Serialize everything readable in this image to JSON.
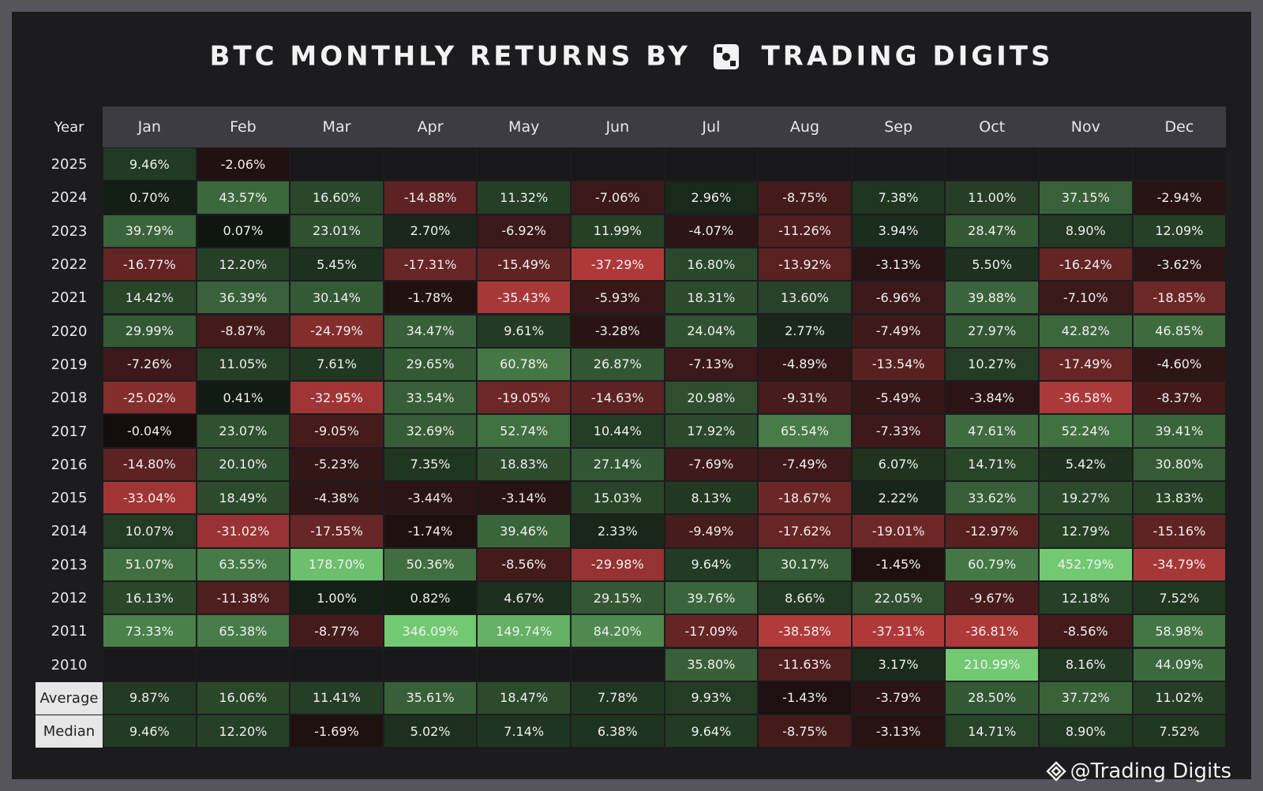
{
  "header": {
    "title": "BTC MONTHLY RETURNS BY",
    "brand": "TRADING DIGITS"
  },
  "table": {
    "columns": [
      "Year",
      "Jan",
      "Feb",
      "Mar",
      "Apr",
      "May",
      "Jun",
      "Jul",
      "Aug",
      "Sep",
      "Oct",
      "Nov",
      "Dec"
    ],
    "rows": [
      [
        "2025",
        "9.46%",
        "-2.06%",
        null,
        null,
        null,
        null,
        null,
        null,
        null,
        null,
        null,
        null
      ],
      [
        "2024",
        "0.70%",
        "43.57%",
        "16.60%",
        "-14.88%",
        "11.32%",
        "-7.06%",
        "2.96%",
        "-8.75%",
        "7.38%",
        "11.00%",
        "37.15%",
        "-2.94%"
      ],
      [
        "2023",
        "39.79%",
        "0.07%",
        "23.01%",
        "2.70%",
        "-6.92%",
        "11.99%",
        "-4.07%",
        "-11.26%",
        "3.94%",
        "28.47%",
        "8.90%",
        "12.09%"
      ],
      [
        "2022",
        "-16.77%",
        "12.20%",
        "5.45%",
        "-17.31%",
        "-15.49%",
        "-37.29%",
        "16.80%",
        "-13.92%",
        "-3.13%",
        "5.50%",
        "-16.24%",
        "-3.62%"
      ],
      [
        "2021",
        "14.42%",
        "36.39%",
        "30.14%",
        "-1.78%",
        "-35.43%",
        "-5.93%",
        "18.31%",
        "13.60%",
        "-6.96%",
        "39.88%",
        "-7.10%",
        "-18.85%"
      ],
      [
        "2020",
        "29.99%",
        "-8.87%",
        "-24.79%",
        "34.47%",
        "9.61%",
        "-3.28%",
        "24.04%",
        "2.77%",
        "-7.49%",
        "27.97%",
        "42.82%",
        "46.85%"
      ],
      [
        "2019",
        "-7.26%",
        "11.05%",
        "7.61%",
        "29.65%",
        "60.78%",
        "26.87%",
        "-7.13%",
        "-4.89%",
        "-13.54%",
        "10.27%",
        "-17.49%",
        "-4.60%"
      ],
      [
        "2018",
        "-25.02%",
        "0.41%",
        "-32.95%",
        "33.54%",
        "-19.05%",
        "-14.63%",
        "20.98%",
        "-9.31%",
        "-5.49%",
        "-3.84%",
        "-36.58%",
        "-8.37%"
      ],
      [
        "2017",
        "-0.04%",
        "23.07%",
        "-9.05%",
        "32.69%",
        "52.74%",
        "10.44%",
        "17.92%",
        "65.54%",
        "-7.33%",
        "47.61%",
        "52.24%",
        "39.41%"
      ],
      [
        "2016",
        "-14.80%",
        "20.10%",
        "-5.23%",
        "7.35%",
        "18.83%",
        "27.14%",
        "-7.69%",
        "-7.49%",
        "6.07%",
        "14.71%",
        "5.42%",
        "30.80%"
      ],
      [
        "2015",
        "-33.04%",
        "18.49%",
        "-4.38%",
        "-3.44%",
        "-3.14%",
        "15.03%",
        "8.13%",
        "-18.67%",
        "2.22%",
        "33.62%",
        "19.27%",
        "13.83%"
      ],
      [
        "2014",
        "10.07%",
        "-31.02%",
        "-17.55%",
        "-1.74%",
        "39.46%",
        "2.33%",
        "-9.49%",
        "-17.62%",
        "-19.01%",
        "-12.97%",
        "12.79%",
        "-15.16%"
      ],
      [
        "2013",
        "51.07%",
        "63.55%",
        "178.70%",
        "50.36%",
        "-8.56%",
        "-29.98%",
        "9.64%",
        "30.17%",
        "-1.45%",
        "60.79%",
        "452.79%",
        "-34.79%"
      ],
      [
        "2012",
        "16.13%",
        "-11.38%",
        "1.00%",
        "0.82%",
        "4.67%",
        "29.15%",
        "39.76%",
        "8.66%",
        "22.05%",
        "-9.67%",
        "12.18%",
        "7.52%"
      ],
      [
        "2011",
        "73.33%",
        "65.38%",
        "-8.77%",
        "346.09%",
        "149.74%",
        "84.20%",
        "-17.09%",
        "-38.58%",
        "-37.31%",
        "-36.81%",
        "-8.56%",
        "58.98%"
      ],
      [
        "2010",
        null,
        null,
        null,
        null,
        null,
        null,
        "35.80%",
        "-11.63%",
        "3.17%",
        "210.99%",
        "8.16%",
        "44.09%"
      ],
      [
        "Average",
        "9.87%",
        "16.06%",
        "11.41%",
        "35.61%",
        "18.47%",
        "7.78%",
        "9.93%",
        "-1.43%",
        "-3.79%",
        "28.50%",
        "37.72%",
        "11.02%"
      ],
      [
        "Median",
        "9.46%",
        "12.20%",
        "-1.69%",
        "5.02%",
        "7.14%",
        "6.38%",
        "9.64%",
        "-8.75%",
        "-3.13%",
        "14.71%",
        "8.90%",
        "7.52%"
      ]
    ]
  },
  "footer": "@Trading Digits"
}
